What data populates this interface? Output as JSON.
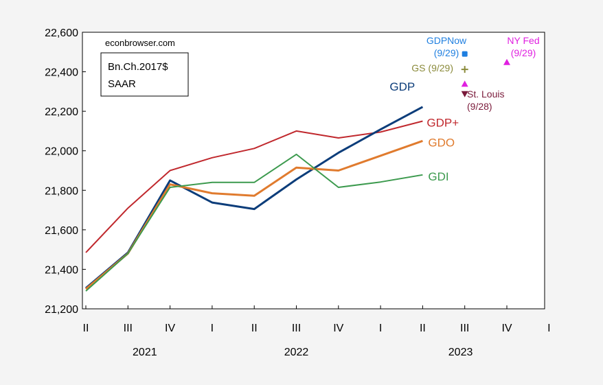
{
  "chart_data": {
    "type": "line",
    "watermark": "econbrowser.com",
    "units_box": [
      "Bn.Ch.2017$",
      "SAAR"
    ],
    "ylim": [
      21200,
      22600
    ],
    "yticks": [
      21200,
      21400,
      21600,
      21800,
      22000,
      22200,
      22400,
      22600
    ],
    "ytick_labels": [
      "21,200",
      "21,400",
      "21,600",
      "21,800",
      "22,000",
      "22,200",
      "22,400",
      "22,600"
    ],
    "quarter_labels": [
      "II",
      "III",
      "IV",
      "I",
      "II",
      "III",
      "IV",
      "I",
      "II",
      "III",
      "IV",
      "I"
    ],
    "year_labels": [
      {
        "label": "2021",
        "center": 1.4
      },
      {
        "label": "2022",
        "center": 5.0
      },
      {
        "label": "2023",
        "center": 8.9
      }
    ],
    "series": [
      {
        "name": "GDP+",
        "color": "#c0282d",
        "width": 2,
        "values": [
          21485,
          21710,
          21900,
          21965,
          22012,
          22100,
          22065,
          22095,
          22150
        ]
      },
      {
        "name": "GDP",
        "color": "#0c3d7a",
        "width": 3,
        "values": [
          21305,
          21485,
          21850,
          21738,
          21705,
          21855,
          21990,
          22108,
          22222
        ]
      },
      {
        "name": "GDO",
        "color": "#e07b2e",
        "width": 3,
        "values": [
          21300,
          21480,
          21830,
          21785,
          21772,
          21915,
          21900,
          21975,
          22050
        ]
      },
      {
        "name": "GDI",
        "color": "#3c9a4e",
        "width": 2,
        "values": [
          21290,
          21480,
          21815,
          21840,
          21840,
          21982,
          21815,
          21842,
          21878
        ]
      }
    ],
    "nowcasts": [
      {
        "name": "GDPNow (9/29)",
        "lines": [
          "GDPNow",
          "(9/29)"
        ],
        "color": "#1f7fe0",
        "marker": "square",
        "x": 9,
        "y": 22490
      },
      {
        "name": "GS (9/29)",
        "lines": [
          "GS (9/29)"
        ],
        "color": "#8a8a3a",
        "marker": "plus",
        "x": 9,
        "y": 22412
      },
      {
        "name": "NY Fed (9/29)",
        "lines": [
          "NY Fed",
          "(9/29)"
        ],
        "color": "#e020e0",
        "marker": "triangle-up",
        "x": 10,
        "y": 22448
      },
      {
        "name": "NY Fed Q3",
        "lines": [],
        "color": "#e020e0",
        "marker": "triangle-up",
        "x": 9,
        "y": 22338
      },
      {
        "name": "St. Louis (9/28)",
        "lines": [
          "St. Louis",
          "(9/28)"
        ],
        "color": "#7a1a3a",
        "marker": "triangle-down",
        "x": 9,
        "y": 22288
      }
    ]
  }
}
